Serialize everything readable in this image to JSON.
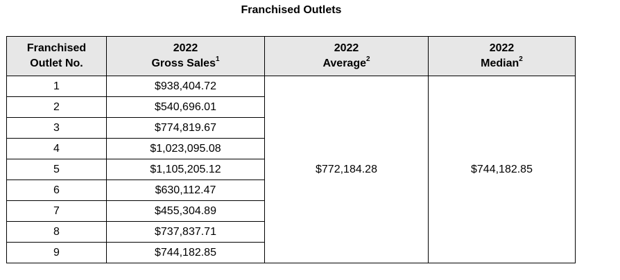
{
  "title": "Franchised Outlets",
  "columns": [
    {
      "line1": "Franchised",
      "line2": "Outlet No.",
      "sup": ""
    },
    {
      "line1": "2022",
      "line2": "Gross Sales",
      "sup": "1"
    },
    {
      "line1": "2022",
      "line2": "Average",
      "sup": "2"
    },
    {
      "line1": "2022",
      "line2": "Median",
      "sup": "2"
    }
  ],
  "rows": [
    {
      "outlet_no": "1",
      "gross_sales": "$938,404.72"
    },
    {
      "outlet_no": "2",
      "gross_sales": "$540,696.01"
    },
    {
      "outlet_no": "3",
      "gross_sales": "$774,819.67"
    },
    {
      "outlet_no": "4",
      "gross_sales": "$1,023,095.08"
    },
    {
      "outlet_no": "5",
      "gross_sales": "$1,105,205.12"
    },
    {
      "outlet_no": "6",
      "gross_sales": "$630,112.47"
    },
    {
      "outlet_no": "7",
      "gross_sales": "$455,304.89"
    },
    {
      "outlet_no": "8",
      "gross_sales": "$737,837.71"
    },
    {
      "outlet_no": "9",
      "gross_sales": "$744,182.85"
    }
  ],
  "average": "$772,184.28",
  "median": "$744,182.85"
}
